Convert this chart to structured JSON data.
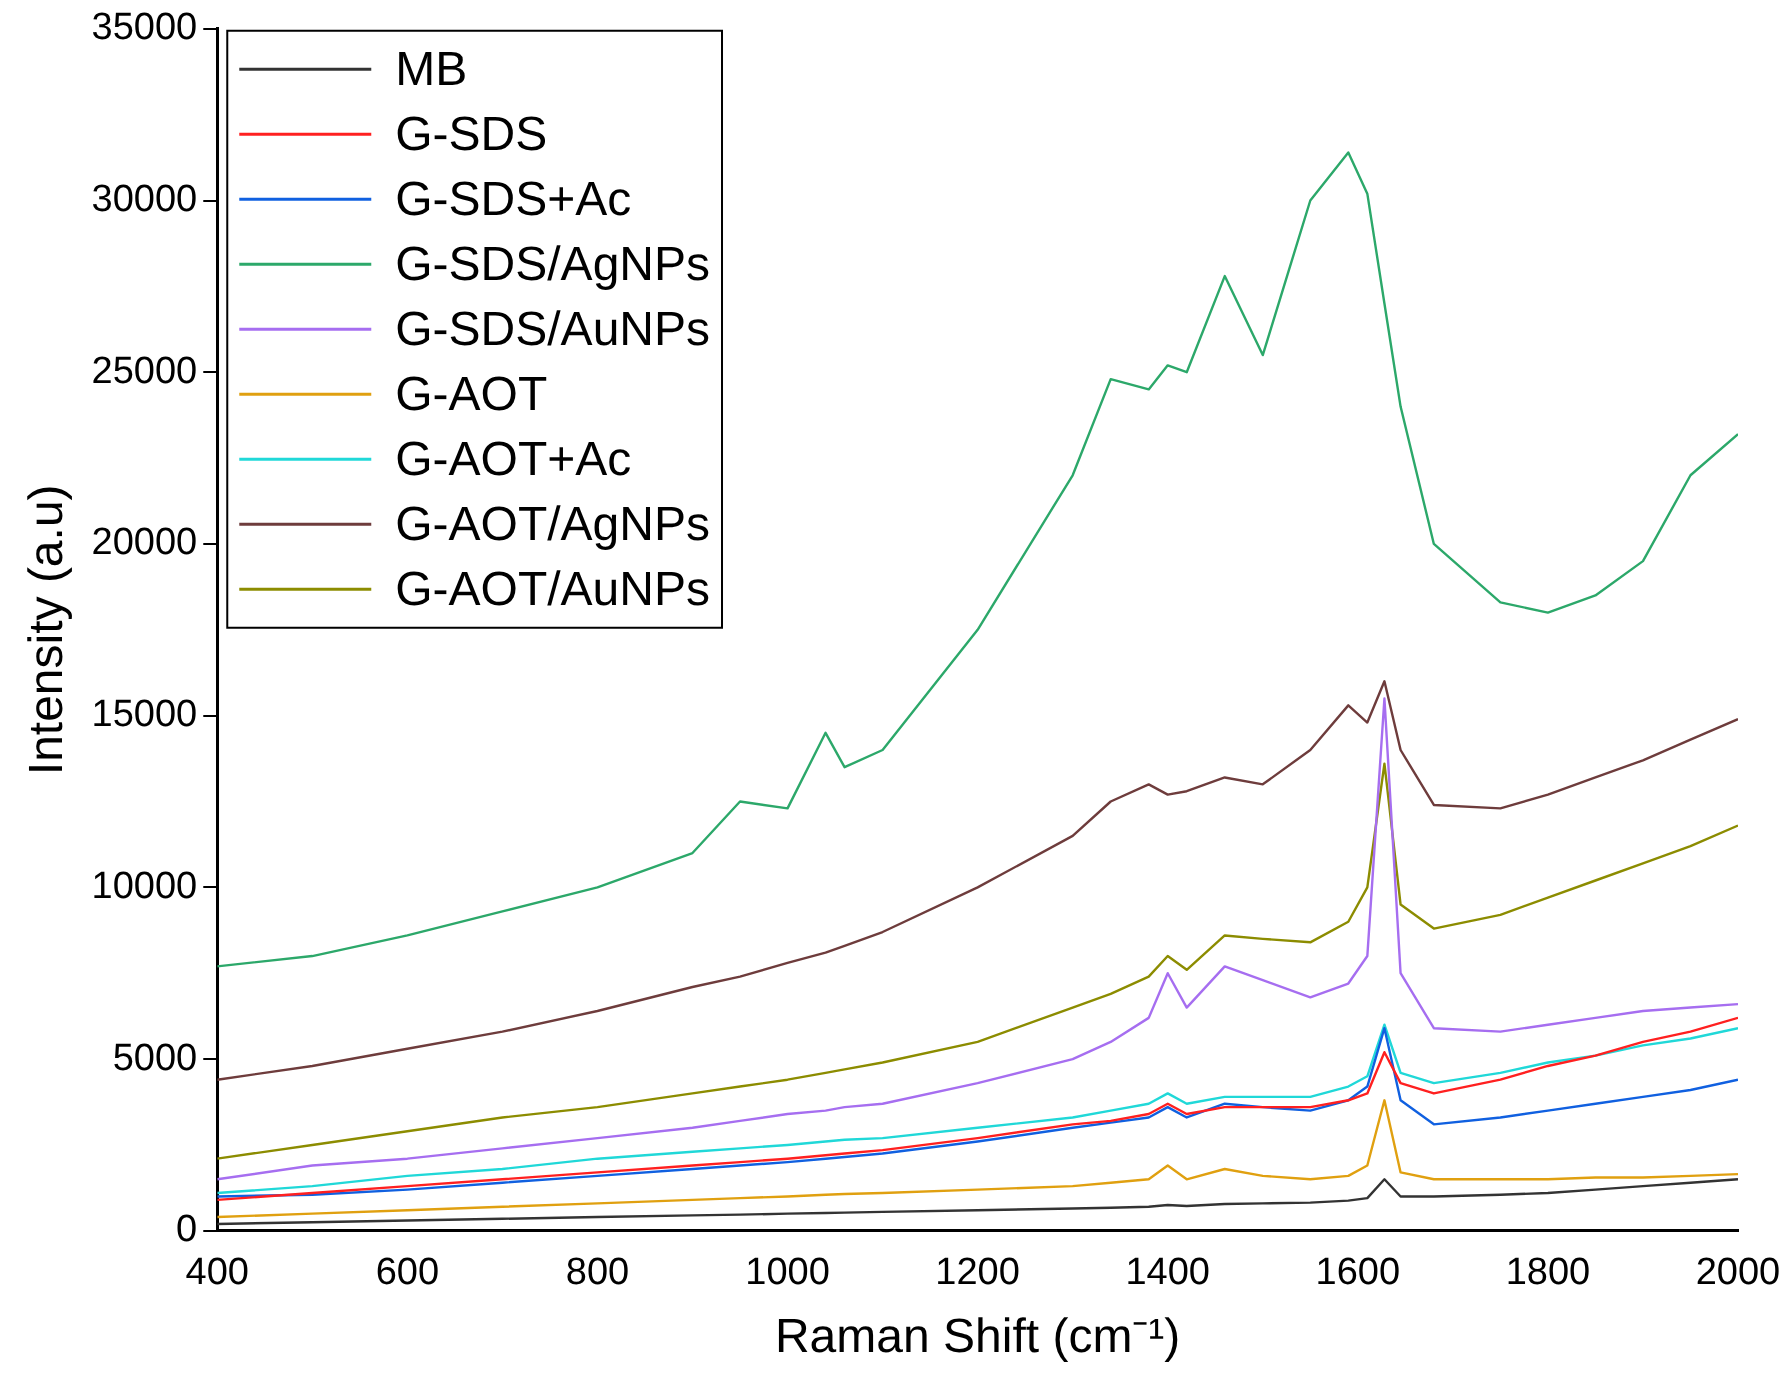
{
  "chart_data": {
    "type": "line",
    "xlabel": "Raman Shift (cm⁻¹)",
    "ylabel": "Intensity (a.u)",
    "x": [
      400,
      500,
      600,
      700,
      800,
      900,
      950,
      1000,
      1040,
      1060,
      1100,
      1200,
      1300,
      1340,
      1380,
      1400,
      1420,
      1460,
      1500,
      1550,
      1590,
      1610,
      1628,
      1645,
      1680,
      1750,
      1800,
      1850,
      1900,
      1950,
      2000
    ],
    "xlim": [
      400,
      2000
    ],
    "xticks": [
      400,
      600,
      800,
      1000,
      1200,
      1400,
      1600,
      1800,
      2000
    ],
    "ylim": [
      0,
      35000
    ],
    "yticks": [
      0,
      5000,
      10000,
      15000,
      20000,
      25000,
      30000,
      35000
    ],
    "grid": false,
    "legend": "top left",
    "marker": "none",
    "line_style": "solid",
    "series": [
      {
        "name": "MB",
        "color": "#333333",
        "values": [
          200,
          250,
          300,
          350,
          400,
          450,
          470,
          500,
          520,
          530,
          550,
          600,
          650,
          670,
          700,
          750,
          720,
          780,
          800,
          820,
          880,
          950,
          1500,
          1000,
          1000,
          1050,
          1100,
          1200,
          1300,
          1400,
          1500
        ]
      },
      {
        "name": "G-SDS",
        "color": "#ff2020",
        "values": [
          900,
          1100,
          1300,
          1500,
          1700,
          1900,
          2000,
          2100,
          2200,
          2250,
          2350,
          2700,
          3100,
          3200,
          3400,
          3700,
          3400,
          3600,
          3600,
          3600,
          3800,
          4000,
          5200,
          4300,
          4000,
          4400,
          4800,
          5100,
          5500,
          5800,
          6200
        ]
      },
      {
        "name": "G-SDS+Ac",
        "color": "#1060e0",
        "values": [
          1000,
          1050,
          1200,
          1400,
          1600,
          1800,
          1900,
          2000,
          2100,
          2150,
          2250,
          2600,
          3000,
          3150,
          3300,
          3600,
          3300,
          3700,
          3600,
          3500,
          3800,
          4200,
          5900,
          3800,
          3100,
          3300,
          3500,
          3700,
          3900,
          4100,
          4400
        ]
      },
      {
        "name": "G-SDS/AgNPs",
        "color": "#2ca86a",
        "values": [
          7700,
          8000,
          8600,
          9300,
          10000,
          11000,
          12500,
          12300,
          14500,
          13500,
          14000,
          17500,
          22000,
          24800,
          24500,
          25200,
          25000,
          27800,
          25500,
          30000,
          31400,
          30200,
          27000,
          24000,
          20000,
          18300,
          18000,
          18500,
          19500,
          22000,
          23200
        ]
      },
      {
        "name": "G-SDS/AuNPs",
        "color": "#a66ef0",
        "values": [
          1500,
          1900,
          2100,
          2400,
          2700,
          3000,
          3200,
          3400,
          3500,
          3600,
          3700,
          4300,
          5000,
          5500,
          6200,
          7500,
          6500,
          7700,
          7300,
          6800,
          7200,
          8000,
          15500,
          7500,
          5900,
          5800,
          6000,
          6200,
          6400,
          6500,
          6600
        ]
      },
      {
        "name": "G-AOT",
        "color": "#e0a010",
        "values": [
          400,
          500,
          600,
          700,
          800,
          900,
          950,
          1000,
          1050,
          1070,
          1100,
          1200,
          1300,
          1400,
          1500,
          1900,
          1500,
          1800,
          1600,
          1500,
          1600,
          1900,
          3800,
          1700,
          1500,
          1500,
          1500,
          1550,
          1550,
          1600,
          1650
        ]
      },
      {
        "name": "G-AOT+Ac",
        "color": "#20d8d8",
        "values": [
          1100,
          1300,
          1600,
          1800,
          2100,
          2300,
          2400,
          2500,
          2600,
          2650,
          2700,
          3000,
          3300,
          3500,
          3700,
          4000,
          3700,
          3900,
          3900,
          3900,
          4200,
          4500,
          6000,
          4600,
          4300,
          4600,
          4900,
          5100,
          5400,
          5600,
          5900
        ]
      },
      {
        "name": "G-AOT/AgNPs",
        "color": "#6e3c3c",
        "values": [
          4400,
          4800,
          5300,
          5800,
          6400,
          7100,
          7400,
          7800,
          8100,
          8300,
          8700,
          10000,
          11500,
          12500,
          13000,
          12700,
          12800,
          13200,
          13000,
          14000,
          15300,
          14800,
          16000,
          14000,
          12400,
          12300,
          12700,
          13200,
          13700,
          14300,
          14900
        ]
      },
      {
        "name": "G-AOT/AuNPs",
        "color": "#8c8c00",
        "values": [
          2100,
          2500,
          2900,
          3300,
          3600,
          4000,
          4200,
          4400,
          4600,
          4700,
          4900,
          5500,
          6500,
          6900,
          7400,
          8000,
          7600,
          8600,
          8500,
          8400,
          9000,
          10000,
          13600,
          9500,
          8800,
          9200,
          9700,
          10200,
          10700,
          11200,
          11800
        ]
      }
    ]
  }
}
